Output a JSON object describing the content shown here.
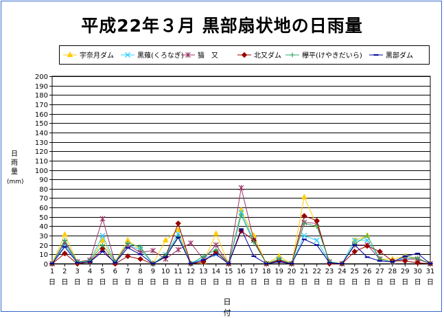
{
  "chart_data": {
    "type": "line",
    "title": "平成22年３月  黒部扇状地の日雨量",
    "ylabel": "日雨量(mm)",
    "ylabel_lines": [
      "日",
      "雨",
      "量",
      "(mm)"
    ],
    "xlabel": "日　付",
    "ylim": [
      0,
      200
    ],
    "ytick_step": 10,
    "grid": true,
    "legend_position": "top",
    "x_suffix": "日",
    "x": [
      1,
      2,
      3,
      4,
      5,
      6,
      7,
      8,
      9,
      10,
      11,
      12,
      13,
      14,
      15,
      16,
      17,
      18,
      19,
      20,
      21,
      22,
      23,
      24,
      25,
      26,
      27,
      28,
      29,
      30,
      31
    ],
    "series": [
      {
        "name": "宇奈月ダム",
        "color": "#ffcc00",
        "marker": "triangle",
        "values": [
          0,
          31,
          2,
          3,
          25,
          2,
          25,
          15,
          0,
          25,
          36,
          0,
          2,
          32,
          0,
          57,
          30,
          0,
          8,
          0,
          71,
          41,
          2,
          0,
          25,
          30,
          5,
          5,
          8,
          5,
          0
        ]
      },
      {
        "name": "黒薙(くろなぎ)",
        "color": "#33ccff",
        "marker": "x",
        "values": [
          0,
          20,
          2,
          3,
          30,
          2,
          20,
          15,
          0,
          10,
          32,
          0,
          6,
          10,
          0,
          55,
          25,
          0,
          5,
          0,
          30,
          25,
          2,
          0,
          25,
          25,
          5,
          2,
          6,
          5,
          0
        ]
      },
      {
        "name": "猫　又",
        "color": "#993366",
        "marker": "star",
        "values": [
          0,
          23,
          2,
          4,
          48,
          1,
          20,
          12,
          14,
          5,
          15,
          22,
          5,
          20,
          0,
          81,
          25,
          0,
          4,
          0,
          44,
          43,
          2,
          0,
          20,
          20,
          5,
          2,
          5,
          5,
          0
        ]
      },
      {
        "name": "北又ダム",
        "color": "#990000",
        "marker": "diamond",
        "values": [
          0,
          11,
          0,
          2,
          16,
          0,
          8,
          5,
          0,
          8,
          43,
          0,
          2,
          13,
          0,
          35,
          25,
          0,
          3,
          0,
          51,
          46,
          0,
          0,
          13,
          19,
          13,
          3,
          3,
          1,
          0
        ]
      },
      {
        "name": "欅平(けやきだいら)",
        "color": "#33aa66",
        "marker": "plus",
        "values": [
          0,
          25,
          2,
          3,
          20,
          2,
          22,
          18,
          0,
          9,
          29,
          0,
          8,
          15,
          0,
          52,
          23,
          0,
          5,
          0,
          43,
          40,
          2,
          0,
          21,
          30,
          5,
          2,
          8,
          6,
          0
        ]
      },
      {
        "name": "黒部ダム",
        "color": "#000099",
        "marker": "dash",
        "values": [
          0,
          18,
          1,
          2,
          13,
          1,
          17,
          10,
          0,
          7,
          28,
          0,
          4,
          10,
          0,
          37,
          8,
          0,
          2,
          0,
          26,
          20,
          1,
          0,
          20,
          7,
          3,
          2,
          8,
          11,
          0
        ]
      }
    ]
  }
}
